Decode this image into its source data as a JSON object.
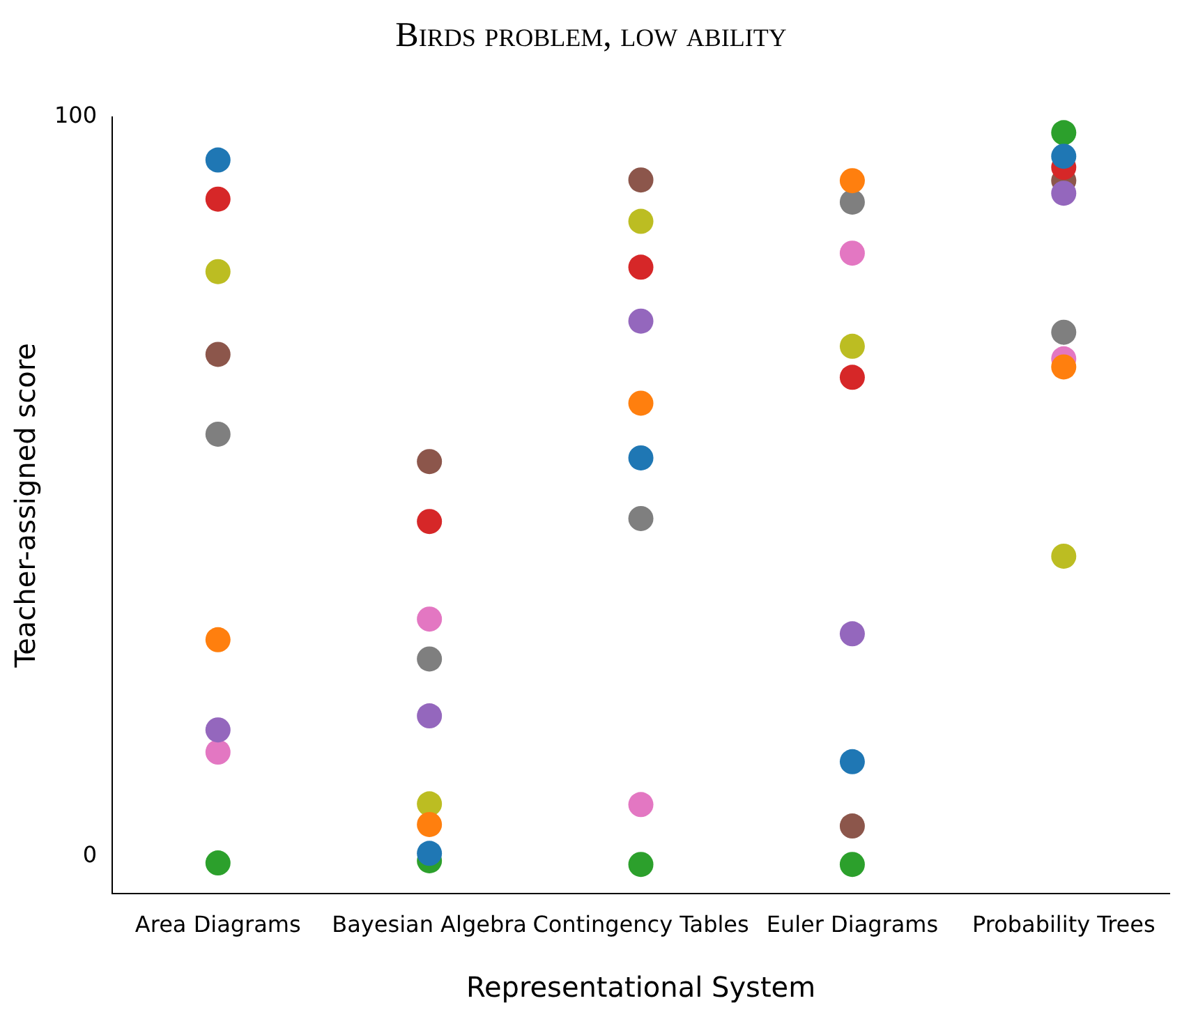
{
  "chart_data": {
    "type": "scatter",
    "title": "Birds problem, low ability",
    "xlabel": "Representational System",
    "ylabel": "Teacher-assigned score",
    "categories": [
      "Area Diagrams",
      "Bayesian Algebra",
      "Contingency Tables",
      "Euler Diagrams",
      "Probability Trees"
    ],
    "ylim": [
      -5,
      100
    ],
    "yticks": [
      0,
      100
    ],
    "grid": false,
    "legend": false,
    "marker": "circle",
    "series": [
      {
        "color": "#1f77b4",
        "values": [
          94.2,
          0.4,
          53.9,
          12.8,
          94.7
        ]
      },
      {
        "color": "#ff7f0e",
        "values": [
          29.3,
          4.3,
          61.3,
          91.4,
          66.2
        ]
      },
      {
        "color": "#2ca02c",
        "values": [
          -0.9,
          -0.6,
          -1.1,
          -1.1,
          97.9
        ]
      },
      {
        "color": "#d62728",
        "values": [
          88.9,
          45.3,
          79.7,
          64.8,
          93.2
        ]
      },
      {
        "color": "#9467bd",
        "values": [
          17.1,
          19.0,
          72.4,
          30.1,
          89.7
        ]
      },
      {
        "color": "#8c564b",
        "values": [
          67.9,
          53.4,
          91.5,
          4.1,
          91.4
        ]
      },
      {
        "color": "#e377c2",
        "values": [
          14.1,
          32.1,
          7.0,
          81.6,
          67.3
        ]
      },
      {
        "color": "#7f7f7f",
        "values": [
          57.1,
          26.7,
          45.7,
          88.5,
          70.9
        ]
      },
      {
        "color": "#bcbd22",
        "values": [
          79.1,
          7.1,
          85.9,
          69.0,
          40.6
        ]
      }
    ]
  }
}
